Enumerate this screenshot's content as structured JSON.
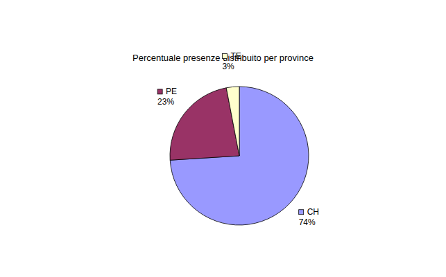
{
  "chart_data": {
    "type": "pie",
    "title": "Percentuale presenze distribuito per province",
    "categories": [
      "CH",
      "PE",
      "TE"
    ],
    "values": [
      74,
      23,
      3
    ],
    "value_labels": [
      "74%",
      "23%",
      "3%"
    ],
    "colors": [
      "#9999ff",
      "#993366",
      "#ffffcc"
    ],
    "data_labels": true
  }
}
